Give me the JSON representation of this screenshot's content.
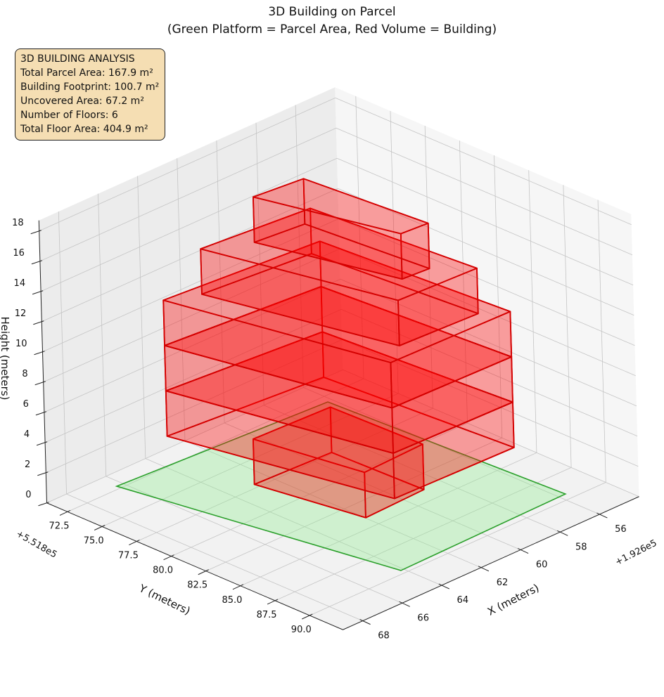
{
  "title_line1": "3D Building on Parcel",
  "title_line2": "(Green Platform = Parcel Area, Red Volume = Building)",
  "info_box": {
    "heading": "3D BUILDING ANALYSIS",
    "lines": [
      "Total Parcel Area: 167.9 m²",
      "Building Footprint: 100.7 m²",
      "Uncovered Area: 67.2 m²",
      "Number of Floors: 6",
      "Total Floor Area: 404.9 m²"
    ]
  },
  "chart_data": {
    "type": "3d-polygon",
    "title": "3D Building on Parcel\n(Green Platform = Parcel Area, Red Volume = Building)",
    "xlabel": "X (meters)",
    "ylabel": "Y (meters)",
    "zlabel": "Height (meters)",
    "x_offset_label": "+1.926e5",
    "y_offset_label": "+5.518e5",
    "xlim": [
      54,
      69
    ],
    "ylim": [
      71,
      92.4
    ],
    "zlim": [
      0,
      18.7
    ],
    "x_ticks": [
      56,
      58,
      60,
      62,
      64,
      66,
      68
    ],
    "y_ticks": [
      72.5,
      75.0,
      77.5,
      80.0,
      82.5,
      85.0,
      87.5,
      90.0
    ],
    "z_ticks": [
      0,
      2,
      4,
      6,
      8,
      10,
      12,
      14,
      16,
      18
    ],
    "x_tick_labels": [
      "56",
      "58",
      "60",
      "62",
      "64",
      "66",
      "68"
    ],
    "y_tick_labels": [
      "72.5",
      "75.0",
      "77.5",
      "80.0",
      "82.5",
      "85.0",
      "87.5",
      "90.0"
    ],
    "z_tick_labels": [
      "0",
      "2",
      "4",
      "6",
      "8",
      "10",
      "12",
      "14",
      "16",
      "18"
    ],
    "grid": true,
    "parcel": {
      "name": "Parcel Area",
      "color": "#2ca02c",
      "fill": "#90ee90",
      "polygon": [
        [
          66.31,
          72.22
        ],
        [
          64.15,
          89.67
        ],
        [
          55.67,
          89.46
        ],
        [
          56.23,
          73.09
        ]
      ]
    },
    "building_color": "#ff0000",
    "building_edge_color": "#d40000",
    "floors": [
      {
        "floor": 1,
        "z": [
          0,
          3
        ],
        "footprint": [
          [
            62.8,
            77.16
          ],
          [
            61.97,
            84.02
          ],
          [
            58.91,
            83.86
          ],
          [
            59.05,
            77.39
          ]
        ]
      },
      {
        "floor": 2,
        "z": [
          3,
          6
        ],
        "footprint": [
          [
            64.76,
            73.74
          ],
          [
            62.74,
            87.29
          ],
          [
            56.84,
            87.51
          ],
          [
            57.49,
            74.68
          ]
        ]
      },
      {
        "floor": 3,
        "z": [
          6,
          9
        ],
        "footprint": [
          [
            64.76,
            73.74
          ],
          [
            62.74,
            87.29
          ],
          [
            56.84,
            87.51
          ],
          [
            57.49,
            74.68
          ]
        ]
      },
      {
        "floor": 4,
        "z": [
          9,
          12
        ],
        "footprint": [
          [
            64.76,
            73.74
          ],
          [
            62.74,
            87.29
          ],
          [
            56.84,
            87.51
          ],
          [
            57.49,
            74.68
          ]
        ]
      },
      {
        "floor": 5,
        "z": [
          12,
          15
        ],
        "footprint": [
          [
            63.46,
            74.67
          ],
          [
            61.55,
            86.22
          ],
          [
            57.75,
            86.49
          ],
          [
            58.41,
            75.39
          ]
        ]
      },
      {
        "floor": 6,
        "z": [
          15,
          18
        ],
        "footprint": [
          [
            61.75,
            76.12
          ],
          [
            60.22,
            84.61
          ],
          [
            58.94,
            84.76
          ],
          [
            59.45,
            76.48
          ]
        ]
      }
    ]
  }
}
